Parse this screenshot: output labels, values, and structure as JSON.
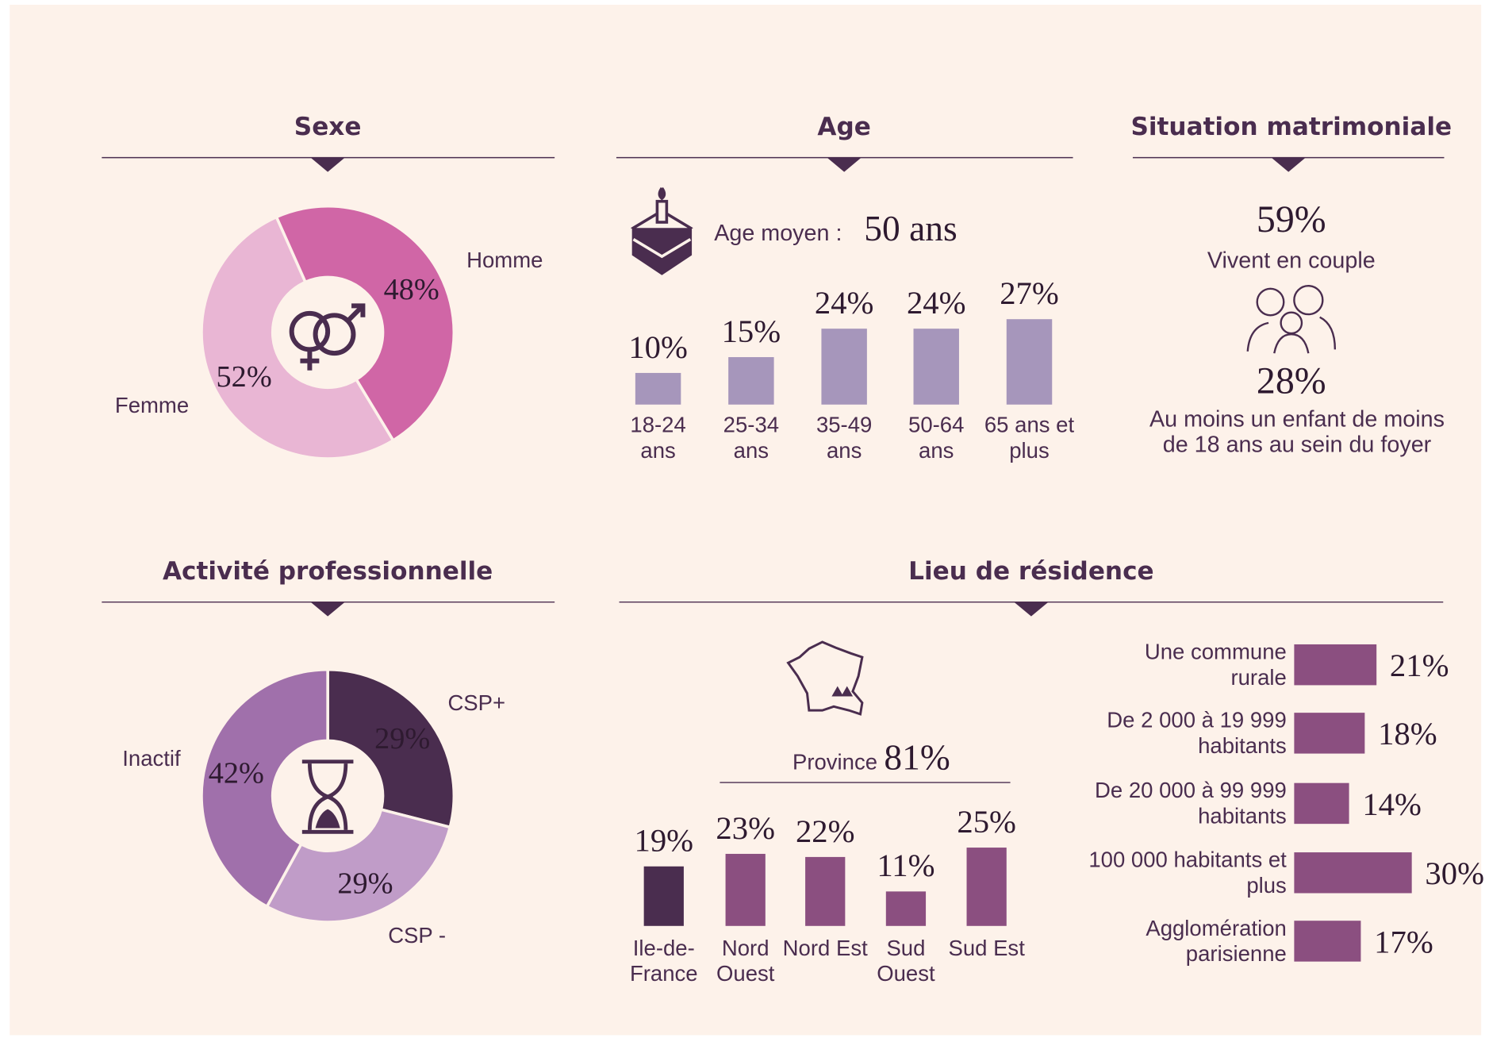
{
  "chart_data": [
    {
      "type": "pie",
      "title": "Sexe",
      "categories": [
        "Homme",
        "Femme"
      ],
      "values": [
        48,
        52
      ],
      "value_labels": [
        "48%",
        "52%"
      ],
      "colors": [
        "#d066a6",
        "#e9b6d4"
      ],
      "label_colors": [
        "#d066a6",
        "#e3a2c9"
      ]
    },
    {
      "type": "bar",
      "title": "Age",
      "subtitle": "Age moyen :",
      "subtitle_value": "50 ans",
      "categories": [
        "18-24 ans",
        "25-34 ans",
        "35-49 ans",
        "50-64 ans",
        "65 ans et plus"
      ],
      "values": [
        10,
        15,
        24,
        24,
        27
      ],
      "value_labels": [
        "10%",
        "15%",
        "24%",
        "24%",
        "27%"
      ],
      "color": "#a696bb"
    },
    {
      "type": "pie",
      "title": "Activité professionnelle",
      "categories": [
        "CSP+",
        "CSP -",
        "Inactif"
      ],
      "values": [
        29,
        29,
        42
      ],
      "value_labels": [
        "29%",
        "29%",
        "42%"
      ],
      "colors": [
        "#4a2d4f",
        "#c09cc8",
        "#a070ab"
      ],
      "label_colors": [
        "#4a2d4f",
        "#4a2d4f",
        "#4a2d4f"
      ]
    },
    {
      "type": "bar",
      "title": "Lieu de résidence",
      "subtitle": "Province",
      "subtitle_value": "81%",
      "categories": [
        "Ile-de-France",
        "Nord Ouest",
        "Nord Est",
        "Sud Ouest",
        "Sud Est"
      ],
      "values": [
        19,
        23,
        22,
        11,
        25
      ],
      "value_labels": [
        "19%",
        "23%",
        "22%",
        "11%",
        "25%"
      ],
      "colors": [
        "#4a2d4f",
        "#8b4f80",
        "#8b4f80",
        "#8b4f80",
        "#8b4f80"
      ]
    },
    {
      "type": "hbar",
      "categories": [
        "Une commune rurale",
        "De 2 000 à 19 999 habitants",
        "De 20 000 à 99 999 habitants",
        "100 000 habitants et plus",
        "Agglomération parisienne"
      ],
      "values": [
        21,
        18,
        14,
        30,
        17
      ],
      "value_labels": [
        "21%",
        "18%",
        "14%",
        "30%",
        "17%"
      ],
      "color": "#8b4f80"
    }
  ],
  "situation": {
    "title": "Situation matrimoniale",
    "items": [
      {
        "value": "59%",
        "label": "Vivent en couple"
      },
      {
        "value": "28%",
        "label": "Au moins un enfant de moins de 18 ans au sein du foyer"
      }
    ]
  }
}
